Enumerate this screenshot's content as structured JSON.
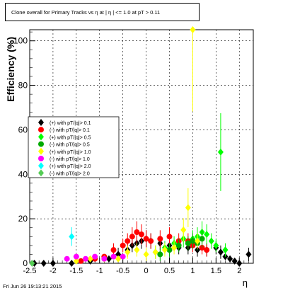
{
  "title": "Clone overall for Primary Tracks vs  η at | η | <= 1.0 at pT > 0.11",
  "footer": "Fri Jun 26 19:13:21 2015",
  "chart_data": {
    "type": "scatter",
    "title": "Clone overall for Primary Tracks vs  η at | η | <= 1.0 at pT > 0.11",
    "xlabel": "η",
    "ylabel": "Efficiency (%)",
    "xlim": [
      -2.5,
      2.3
    ],
    "ylim": [
      0,
      105
    ],
    "x_ticks": [
      "-2.5",
      "-2",
      "-1.5",
      "-1",
      "-0.5",
      "0",
      "0.5",
      "1",
      "1.5",
      "2"
    ],
    "y_ticks": [
      "0",
      "20",
      "40",
      "60",
      "80",
      "100"
    ],
    "grid": true,
    "legend_position": "middle-left",
    "series": [
      {
        "name": "(+) with pT/|q|> 0.1",
        "color": "#000000",
        "marker": "diamond",
        "points": [
          [
            -2.4,
            0
          ],
          [
            -2.2,
            0
          ],
          [
            -2.0,
            0
          ],
          [
            -1.6,
            0
          ],
          [
            -1.2,
            1
          ],
          [
            -0.8,
            2
          ],
          [
            -0.6,
            4
          ],
          [
            -0.4,
            6
          ],
          [
            -0.3,
            8
          ],
          [
            -0.2,
            9
          ],
          [
            -0.1,
            10
          ],
          [
            0.0,
            11
          ],
          [
            0.1,
            10
          ],
          [
            0.3,
            9
          ],
          [
            0.5,
            8
          ],
          [
            0.7,
            7
          ],
          [
            0.9,
            7
          ],
          [
            1.1,
            6
          ],
          [
            1.3,
            6
          ],
          [
            1.5,
            7
          ],
          [
            1.6,
            5
          ],
          [
            1.7,
            3
          ],
          [
            1.8,
            2
          ],
          [
            1.9,
            1
          ],
          [
            2.0,
            0
          ],
          [
            2.2,
            4
          ]
        ]
      },
      {
        "name": "(-) with pT/|q|> 0.1",
        "color": "#ff0000",
        "marker": "circle",
        "points": [
          [
            -1.4,
            1
          ],
          [
            -1.1,
            2
          ],
          [
            -0.9,
            3
          ],
          [
            -0.7,
            6
          ],
          [
            -0.5,
            8
          ],
          [
            -0.4,
            10
          ],
          [
            -0.3,
            12
          ],
          [
            -0.2,
            14
          ],
          [
            -0.1,
            13
          ],
          [
            0.0,
            11
          ],
          [
            0.1,
            10
          ],
          [
            0.3,
            11
          ],
          [
            0.5,
            12
          ],
          [
            0.7,
            10
          ],
          [
            0.9,
            10
          ],
          [
            1.0,
            8
          ],
          [
            1.2,
            7
          ],
          [
            1.3,
            6
          ]
        ]
      },
      {
        "name": "(+) with pT/|q|> 0.5",
        "color": "#00ff00",
        "marker": "diamond",
        "points": [
          [
            0.2,
            5
          ],
          [
            0.4,
            7
          ],
          [
            0.6,
            9
          ],
          [
            0.8,
            11
          ],
          [
            1.0,
            11
          ],
          [
            1.1,
            12
          ],
          [
            1.2,
            14
          ],
          [
            1.3,
            13
          ],
          [
            1.4,
            10
          ],
          [
            1.5,
            8
          ],
          [
            1.6,
            50
          ],
          [
            1.7,
            6
          ]
        ]
      },
      {
        "name": "(-) with pT/|q|> 0.5",
        "color": "#00aa00",
        "marker": "circle",
        "points": [
          [
            0.3,
            4
          ],
          [
            0.5,
            6
          ],
          [
            0.7,
            8
          ],
          [
            0.9,
            9
          ],
          [
            1.0,
            10
          ],
          [
            1.1,
            9
          ],
          [
            1.2,
            11
          ]
        ]
      },
      {
        "name": "(+) with pT/|q|> 1.0",
        "color": "#ffff00",
        "marker": "diamond",
        "points": [
          [
            -1.5,
            1
          ],
          [
            -1.2,
            2
          ],
          [
            -0.9,
            2
          ],
          [
            -0.6,
            2
          ],
          [
            -0.4,
            5
          ],
          [
            -0.2,
            6
          ],
          [
            0.0,
            4
          ],
          [
            0.2,
            5
          ],
          [
            0.4,
            6
          ],
          [
            0.6,
            7
          ],
          [
            0.8,
            15
          ],
          [
            0.9,
            25
          ],
          [
            1.0,
            105
          ],
          [
            1.1,
            10
          ]
        ]
      },
      {
        "name": "(-) with pT/|q|> 1.0",
        "color": "#ff00ff",
        "marker": "circle",
        "points": [
          [
            -1.7,
            2
          ],
          [
            -1.5,
            3
          ],
          [
            -1.3,
            2
          ],
          [
            -1.1,
            3
          ],
          [
            -0.9,
            2
          ],
          [
            -0.7,
            3
          ],
          [
            -0.5,
            3
          ]
        ]
      },
      {
        "name": "(+) with pT/|q|> 2.0",
        "color": "#00ffff",
        "marker": "diamond",
        "points": [
          [
            -1.6,
            12
          ]
        ]
      },
      {
        "name": "(-) with pT/|q|> 2.0",
        "color": "#55cc55",
        "marker": "diamond",
        "points": [
          [
            -2.45,
            0
          ]
        ]
      }
    ]
  }
}
